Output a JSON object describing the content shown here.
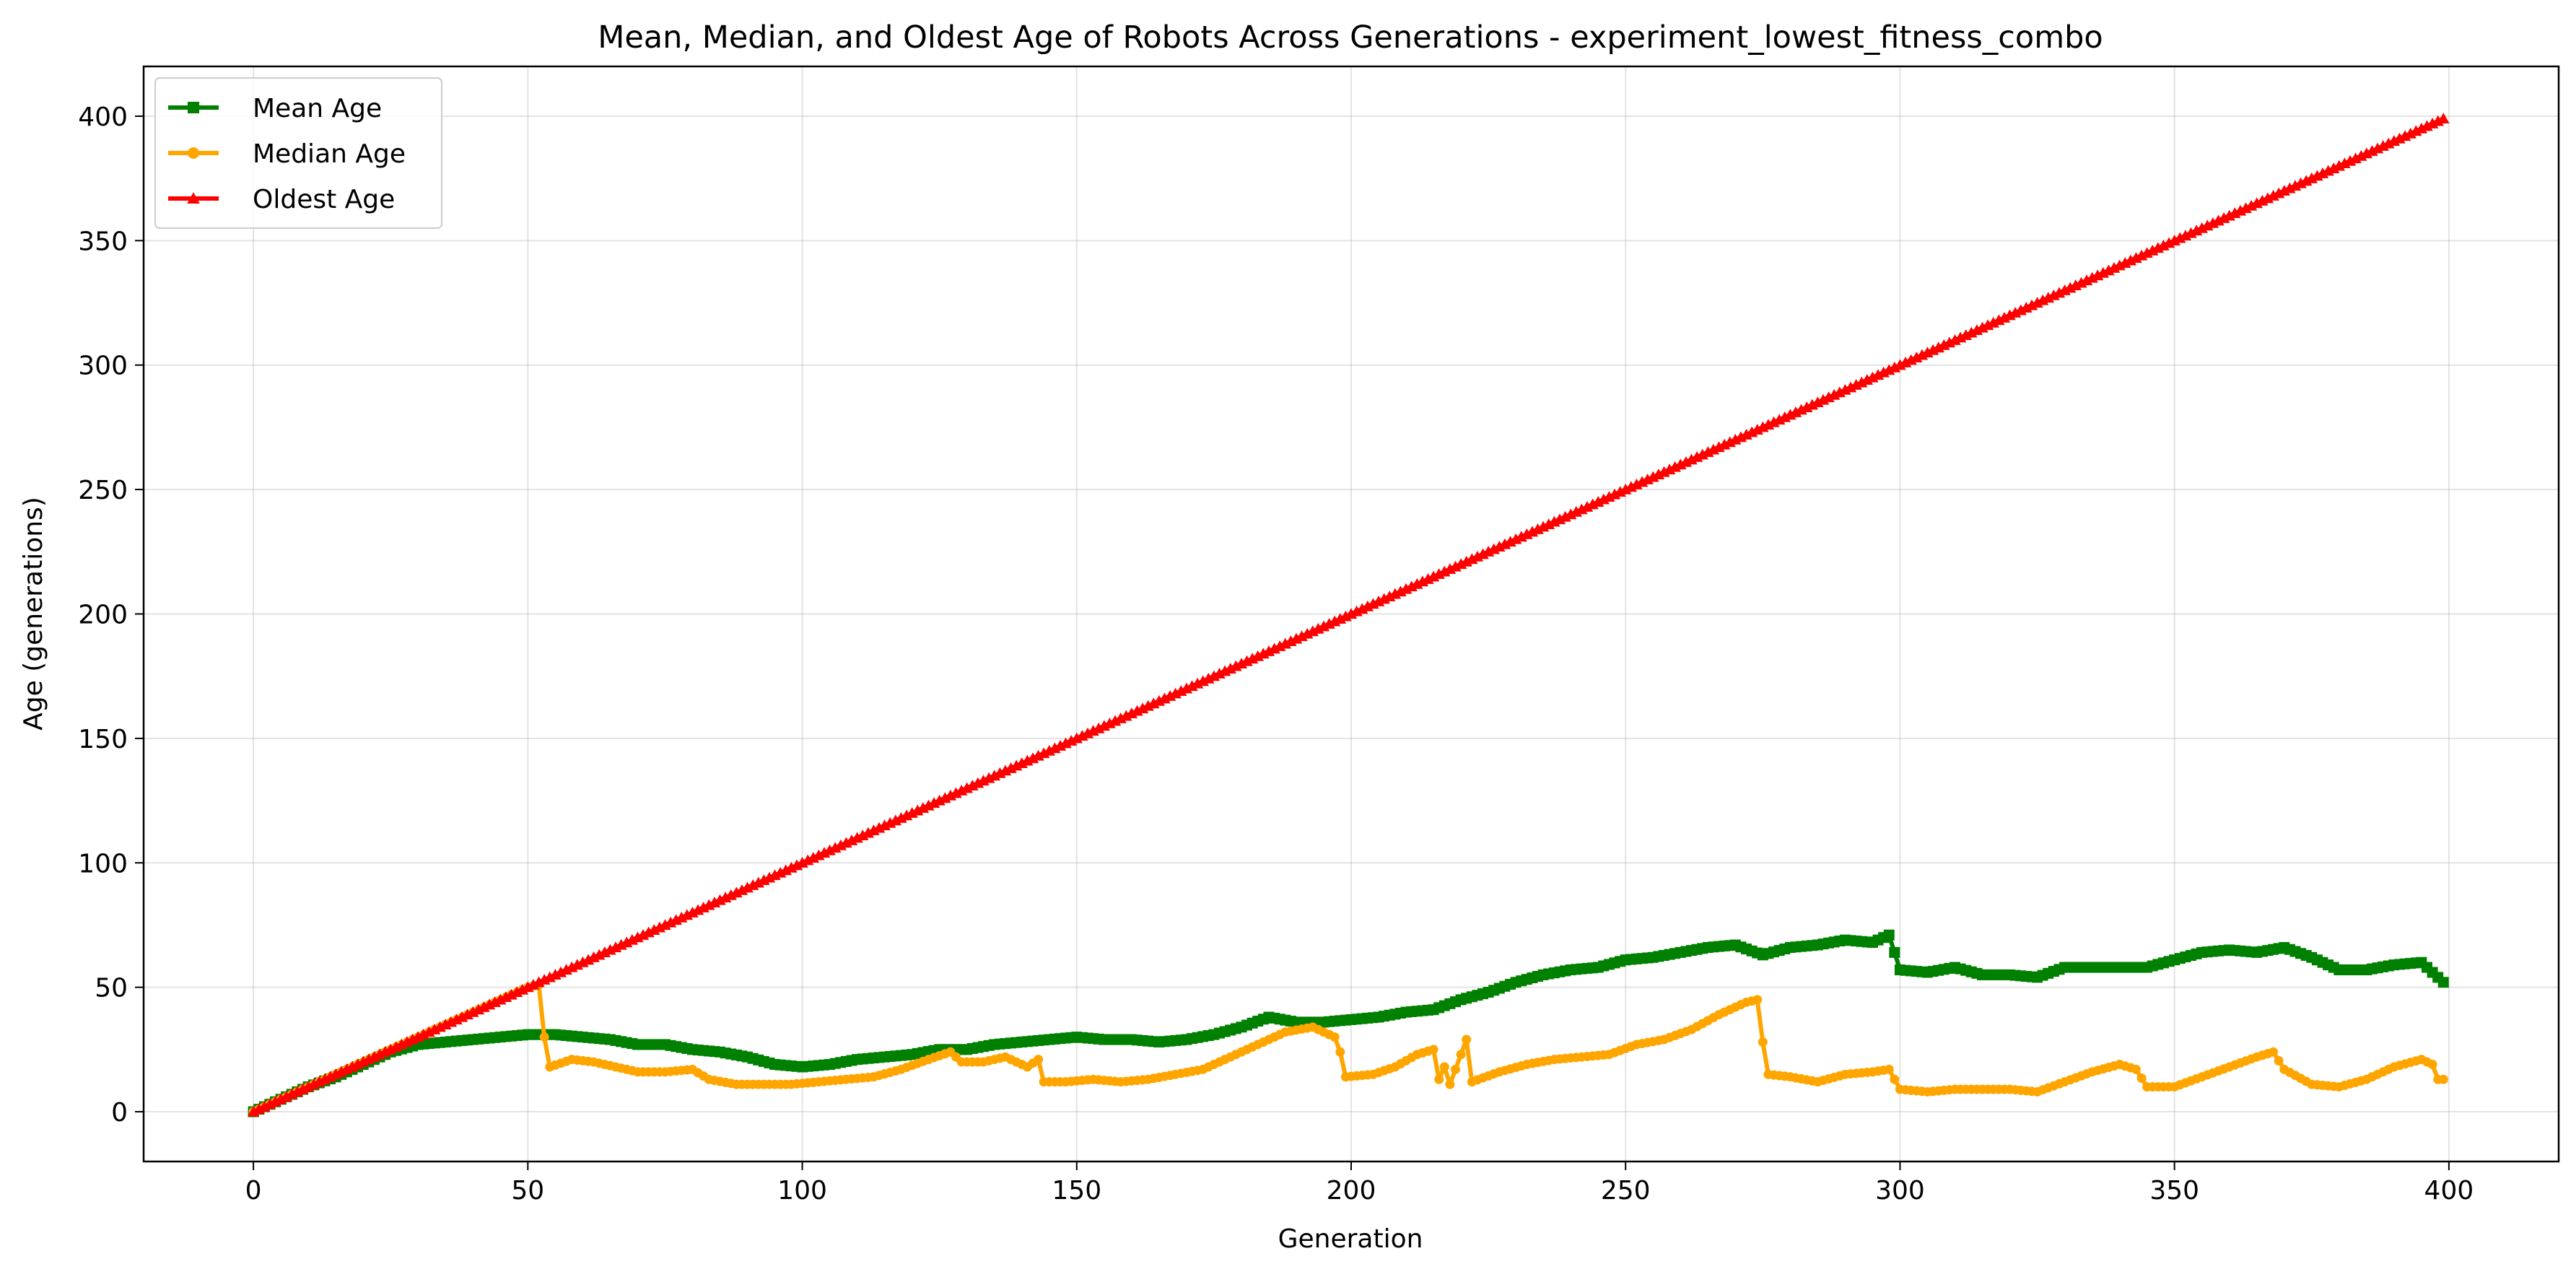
{
  "chart_data": {
    "type": "line",
    "title": "Mean, Median, and Oldest Age of Robots Across Generations - experiment_lowest_fitness_combo",
    "xlabel": "Generation",
    "ylabel": "Age (generations)",
    "xlim": [
      -20,
      420
    ],
    "ylim": [
      -20,
      420
    ],
    "xticks": [
      0,
      50,
      100,
      150,
      200,
      250,
      300,
      350,
      400
    ],
    "yticks": [
      0,
      50,
      100,
      150,
      200,
      250,
      300,
      350,
      400
    ],
    "grid": true,
    "legend_position": "top-left",
    "series": [
      {
        "name": "Mean Age",
        "color": "#008000",
        "marker": "square",
        "points": [
          [
            0,
            0
          ],
          [
            5,
            5
          ],
          [
            10,
            10
          ],
          [
            15,
            14
          ],
          [
            20,
            19
          ],
          [
            25,
            24
          ],
          [
            30,
            27
          ],
          [
            35,
            28
          ],
          [
            40,
            29
          ],
          [
            45,
            30
          ],
          [
            50,
            31
          ],
          [
            55,
            31
          ],
          [
            60,
            30
          ],
          [
            65,
            29
          ],
          [
            70,
            27
          ],
          [
            75,
            27
          ],
          [
            80,
            25
          ],
          [
            85,
            24
          ],
          [
            90,
            22
          ],
          [
            95,
            19
          ],
          [
            100,
            18
          ],
          [
            105,
            19
          ],
          [
            110,
            21
          ],
          [
            115,
            22
          ],
          [
            120,
            23
          ],
          [
            125,
            25
          ],
          [
            130,
            25
          ],
          [
            135,
            27
          ],
          [
            140,
            28
          ],
          [
            145,
            29
          ],
          [
            150,
            30
          ],
          [
            155,
            29
          ],
          [
            160,
            29
          ],
          [
            165,
            28
          ],
          [
            170,
            29
          ],
          [
            175,
            31
          ],
          [
            180,
            34
          ],
          [
            185,
            38
          ],
          [
            190,
            36
          ],
          [
            195,
            36
          ],
          [
            200,
            37
          ],
          [
            205,
            38
          ],
          [
            210,
            40
          ],
          [
            215,
            41
          ],
          [
            220,
            45
          ],
          [
            225,
            48
          ],
          [
            230,
            52
          ],
          [
            235,
            55
          ],
          [
            240,
            57
          ],
          [
            245,
            58
          ],
          [
            250,
            61
          ],
          [
            255,
            62
          ],
          [
            260,
            64
          ],
          [
            265,
            66
          ],
          [
            270,
            67
          ],
          [
            275,
            63
          ],
          [
            280,
            66
          ],
          [
            285,
            67
          ],
          [
            290,
            69
          ],
          [
            295,
            68
          ],
          [
            298,
            71
          ],
          [
            300,
            57
          ],
          [
            305,
            56
          ],
          [
            310,
            58
          ],
          [
            315,
            55
          ],
          [
            320,
            55
          ],
          [
            325,
            54
          ],
          [
            330,
            58
          ],
          [
            335,
            58
          ],
          [
            340,
            58
          ],
          [
            345,
            58
          ],
          [
            350,
            61
          ],
          [
            355,
            64
          ],
          [
            360,
            65
          ],
          [
            365,
            64
          ],
          [
            370,
            66
          ],
          [
            375,
            62
          ],
          [
            380,
            57
          ],
          [
            385,
            57
          ],
          [
            390,
            59
          ],
          [
            395,
            60
          ],
          [
            399,
            52
          ]
        ]
      },
      {
        "name": "Median Age",
        "color": "#ffa500",
        "marker": "circle",
        "points": [
          [
            0,
            0
          ],
          [
            10,
            10
          ],
          [
            20,
            20
          ],
          [
            30,
            30
          ],
          [
            40,
            40
          ],
          [
            50,
            50
          ],
          [
            52,
            51
          ],
          [
            53,
            30
          ],
          [
            54,
            18
          ],
          [
            58,
            21
          ],
          [
            62,
            20
          ],
          [
            66,
            18
          ],
          [
            70,
            16
          ],
          [
            75,
            16
          ],
          [
            80,
            17
          ],
          [
            83,
            13
          ],
          [
            88,
            11
          ],
          [
            93,
            11
          ],
          [
            98,
            11
          ],
          [
            103,
            12
          ],
          [
            108,
            13
          ],
          [
            113,
            14
          ],
          [
            118,
            17
          ],
          [
            123,
            21
          ],
          [
            127,
            24
          ],
          [
            129,
            20
          ],
          [
            133,
            20
          ],
          [
            137,
            22
          ],
          [
            141,
            18
          ],
          [
            143,
            21
          ],
          [
            144,
            12
          ],
          [
            148,
            12
          ],
          [
            153,
            13
          ],
          [
            158,
            12
          ],
          [
            163,
            13
          ],
          [
            168,
            15
          ],
          [
            173,
            17
          ],
          [
            178,
            22
          ],
          [
            183,
            27
          ],
          [
            188,
            32
          ],
          [
            193,
            34
          ],
          [
            197,
            30
          ],
          [
            198,
            24
          ],
          [
            199,
            14
          ],
          [
            204,
            15
          ],
          [
            208,
            18
          ],
          [
            212,
            23
          ],
          [
            215,
            25
          ],
          [
            216,
            13
          ],
          [
            217,
            18
          ],
          [
            218,
            11
          ],
          [
            221,
            29
          ],
          [
            222,
            12
          ],
          [
            227,
            16
          ],
          [
            232,
            19
          ],
          [
            237,
            21
          ],
          [
            242,
            22
          ],
          [
            247,
            23
          ],
          [
            252,
            27
          ],
          [
            257,
            29
          ],
          [
            262,
            33
          ],
          [
            267,
            39
          ],
          [
            272,
            44
          ],
          [
            274,
            45
          ],
          [
            275,
            28
          ],
          [
            276,
            15
          ],
          [
            280,
            14
          ],
          [
            285,
            12
          ],
          [
            290,
            15
          ],
          [
            295,
            16
          ],
          [
            298,
            17
          ],
          [
            300,
            9
          ],
          [
            305,
            8
          ],
          [
            310,
            9
          ],
          [
            315,
            9
          ],
          [
            320,
            9
          ],
          [
            325,
            8
          ],
          [
            330,
            12
          ],
          [
            335,
            16
          ],
          [
            340,
            19
          ],
          [
            343,
            17
          ],
          [
            345,
            10
          ],
          [
            350,
            10
          ],
          [
            355,
            14
          ],
          [
            360,
            18
          ],
          [
            365,
            22
          ],
          [
            368,
            24
          ],
          [
            370,
            17
          ],
          [
            375,
            11
          ],
          [
            380,
            10
          ],
          [
            385,
            13
          ],
          [
            390,
            18
          ],
          [
            395,
            21
          ],
          [
            397,
            19
          ],
          [
            398,
            13
          ],
          [
            399,
            13
          ]
        ]
      },
      {
        "name": "Oldest Age",
        "color": "#ff0000",
        "marker": "triangle",
        "points": [
          [
            0,
            0
          ],
          [
            399,
            399
          ]
        ]
      }
    ]
  }
}
